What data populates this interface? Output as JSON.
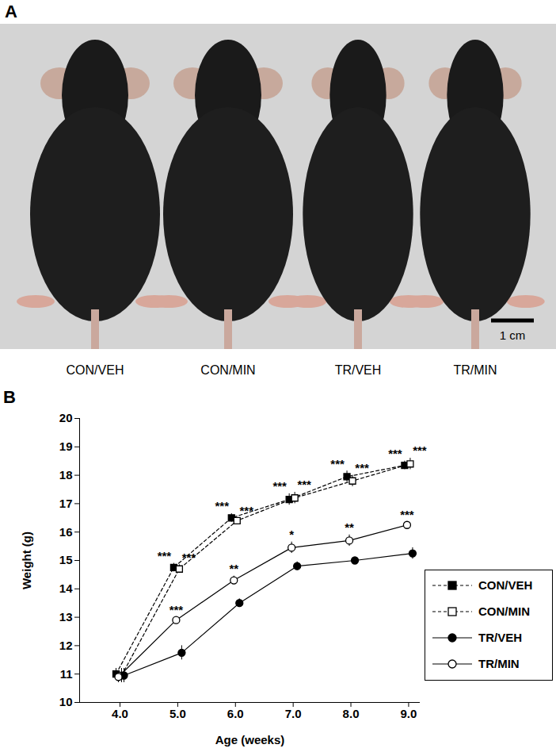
{
  "panel_a": {
    "label": "A",
    "groups": [
      "CON/VEH",
      "CON/MIN",
      "TR/VEH",
      "TR/MIN"
    ],
    "scale_bar": "1 cm"
  },
  "chart_data": {
    "type": "line",
    "panel_label": "B",
    "x_label": "Age (weeks)",
    "y_label": "Weight (g)",
    "x": [
      4,
      5,
      6,
      7,
      8,
      9
    ],
    "xlim": [
      3.3,
      9.2
    ],
    "xticks": [
      4,
      5,
      6,
      7,
      8,
      9
    ],
    "ylim": [
      10,
      20
    ],
    "yticks": [
      10,
      11,
      12,
      13,
      14,
      15,
      16,
      17,
      18,
      19,
      20
    ],
    "legend": "bottom-right",
    "series": [
      {
        "name": "CON/VEH",
        "color": "#000000",
        "marker": "square",
        "line_style": "dashed",
        "values": [
          11.0,
          14.75,
          16.5,
          17.15,
          17.95,
          18.35
        ],
        "errors": [
          0.2,
          0.15,
          0.15,
          0.2,
          0.2,
          0.15
        ],
        "significance": [
          null,
          "***",
          "***",
          "***",
          "***",
          "***"
        ]
      },
      {
        "name": "CON/MIN",
        "color": "#000000",
        "marker": "square-open",
        "line_style": "dashed",
        "values": [
          10.95,
          14.7,
          16.4,
          17.2,
          17.8,
          18.4
        ],
        "errors": [
          0.25,
          0.15,
          0.1,
          0.2,
          0.2,
          0.2
        ],
        "significance": [
          null,
          "***",
          "***",
          "***",
          "***",
          "***"
        ]
      },
      {
        "name": "TR/VEH",
        "color": "#000000",
        "marker": "circle",
        "line_style": "solid",
        "values": [
          10.95,
          11.75,
          13.5,
          14.8,
          15.0,
          15.25
        ],
        "errors": [
          0.25,
          0.25,
          0.15,
          0.15,
          0.1,
          0.2
        ],
        "significance": [
          null,
          null,
          null,
          null,
          null,
          null
        ]
      },
      {
        "name": "TR/MIN",
        "color": "#000000",
        "marker": "circle-open",
        "line_style": "solid",
        "values": [
          10.9,
          12.9,
          14.3,
          15.45,
          15.7,
          16.25
        ],
        "errors": [
          0.2,
          0.1,
          0.15,
          0.2,
          0.2,
          0.1
        ],
        "significance": [
          null,
          "***",
          "**",
          "*",
          "**",
          "***"
        ]
      }
    ]
  }
}
